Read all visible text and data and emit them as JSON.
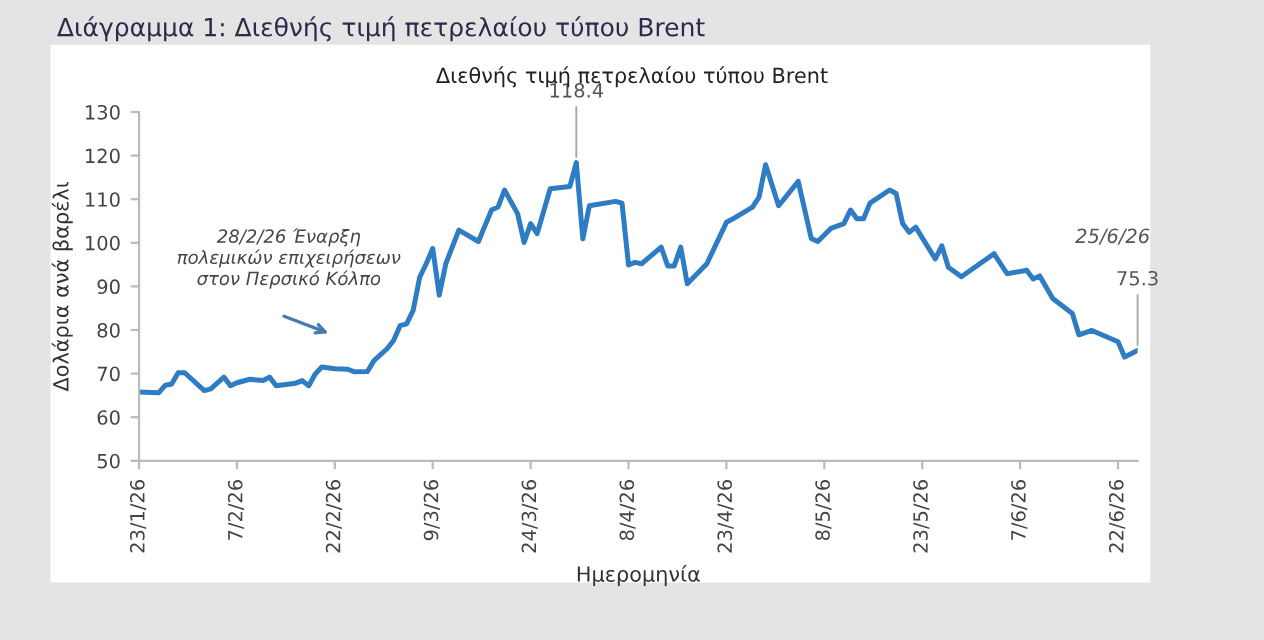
{
  "chart_data": {
    "type": "line",
    "title": "Διάγραμμα 1: Διεθνής τιμή πετρελαίου τύπου Brent",
    "subtitle": "Διεθνής τιμή πετρελαίου τύπου Brent",
    "xlabel": "Ημερομηνία",
    "ylabel": "Δολάρια ανά βαρέλι",
    "x": [
      "2026-01-23",
      "2026-01-26",
      "2026-01-27",
      "2026-01-28",
      "2026-01-29",
      "2026-01-30",
      "2026-02-02",
      "2026-02-03",
      "2026-02-05",
      "2026-02-06",
      "2026-02-07",
      "2026-02-09",
      "2026-02-11",
      "2026-02-12",
      "2026-02-13",
      "2026-02-16",
      "2026-02-17",
      "2026-02-18",
      "2026-02-19",
      "2026-02-20",
      "2026-02-22",
      "2026-02-24",
      "2026-02-25",
      "2026-02-27",
      "2026-02-28",
      "2026-03-02",
      "2026-03-03",
      "2026-03-04",
      "2026-03-05",
      "2026-03-06",
      "2026-03-07",
      "2026-03-08",
      "2026-03-09",
      "2026-03-10",
      "2026-03-11",
      "2026-03-13",
      "2026-03-16",
      "2026-03-18",
      "2026-03-19",
      "2026-03-20",
      "2026-03-22",
      "2026-03-23",
      "2026-03-24",
      "2026-03-25",
      "2026-03-27",
      "2026-03-30",
      "2026-03-31",
      "2026-04-01",
      "2026-04-02",
      "2026-04-06",
      "2026-04-07",
      "2026-04-08",
      "2026-04-09",
      "2026-04-10",
      "2026-04-13",
      "2026-04-14",
      "2026-04-15",
      "2026-04-16",
      "2026-04-17",
      "2026-04-20",
      "2026-04-23",
      "2026-04-24",
      "2026-04-27",
      "2026-04-28",
      "2026-04-29",
      "2026-05-01",
      "2026-05-04",
      "2026-05-06",
      "2026-05-07",
      "2026-05-09",
      "2026-05-11",
      "2026-05-12",
      "2026-05-13",
      "2026-05-14",
      "2026-05-15",
      "2026-05-18",
      "2026-05-19",
      "2026-05-20",
      "2026-05-21",
      "2026-05-22",
      "2026-05-25",
      "2026-05-26",
      "2026-05-27",
      "2026-05-29",
      "2026-06-03",
      "2026-06-05",
      "2026-06-08",
      "2026-06-09",
      "2026-06-10",
      "2026-06-12",
      "2026-06-15",
      "2026-06-16",
      "2026-06-18",
      "2026-06-22",
      "2026-06-23",
      "2026-06-25"
    ],
    "series": [
      {
        "color": "#2e7cc4",
        "values": [
          65.8,
          65.6,
          67.3,
          67.6,
          70.2,
          70.2,
          66.1,
          66.5,
          69.2,
          67.2,
          67.9,
          68.7,
          68.4,
          69.2,
          67.2,
          67.8,
          68.4,
          67.2,
          69.9,
          71.5,
          71.1,
          71.0,
          70.4,
          70.5,
          73.0,
          75.7,
          77.6,
          81.0,
          81.4,
          84.5,
          92.1,
          95.2,
          98.7,
          88.0,
          95.2,
          102.9,
          100.3,
          107.5,
          108.2,
          112.1,
          106.7,
          100.1,
          104.4,
          102.1,
          112.4,
          112.9,
          118.4,
          100.9,
          108.5,
          109.5,
          109.1,
          94.9,
          95.5,
          95.2,
          99.0,
          94.7,
          94.7,
          99.0,
          90.6,
          95.2,
          104.7,
          105.5,
          108.2,
          110.5,
          117.9,
          108.5,
          114.1,
          101.0,
          100.3,
          103.3,
          104.4,
          107.5,
          105.5,
          105.5,
          109.1,
          112.1,
          111.3,
          104.4,
          102.4,
          103.6,
          96.3,
          99.3,
          94.4,
          92.2,
          97.5,
          92.9,
          93.7,
          91.7,
          92.4,
          87.2,
          83.8,
          78.9,
          79.9,
          77.3,
          73.8,
          75.3
        ]
      }
    ],
    "xlim": [
      "2026-01-23",
      "2026-06-25"
    ],
    "xticks": [
      {
        "value": "2026-01-23",
        "label": "23/1/26"
      },
      {
        "value": "2026-02-07",
        "label": "7/2/26"
      },
      {
        "value": "2026-02-22",
        "label": "22/2/26"
      },
      {
        "value": "2026-03-09",
        "label": "9/3/26"
      },
      {
        "value": "2026-03-24",
        "label": "24/3/26"
      },
      {
        "value": "2026-04-08",
        "label": "8/4/26"
      },
      {
        "value": "2026-04-23",
        "label": "23/4/26"
      },
      {
        "value": "2026-05-08",
        "label": "8/5/26"
      },
      {
        "value": "2026-05-23",
        "label": "23/5/26"
      },
      {
        "value": "2026-06-07",
        "label": "7/6/26"
      },
      {
        "value": "2026-06-22",
        "label": "22/6/26"
      }
    ],
    "ylim": [
      50,
      130
    ],
    "yticks": [
      50,
      60,
      70,
      80,
      90,
      100,
      110,
      120,
      130
    ],
    "annotations": [
      "28/2/26 Έναρξη\nπολεμικών επιχειρήσεων\nστον Περσικό Κόλπο",
      {
        "text": "118.4",
        "x": "2026-03-31",
        "y": 118.4
      },
      {
        "text": "75.3",
        "x": "2026-06-25",
        "y": 75.3
      },
      "25/6/26"
    ],
    "grid": false,
    "legend": false,
    "marker": "none",
    "line_style": "solid"
  }
}
